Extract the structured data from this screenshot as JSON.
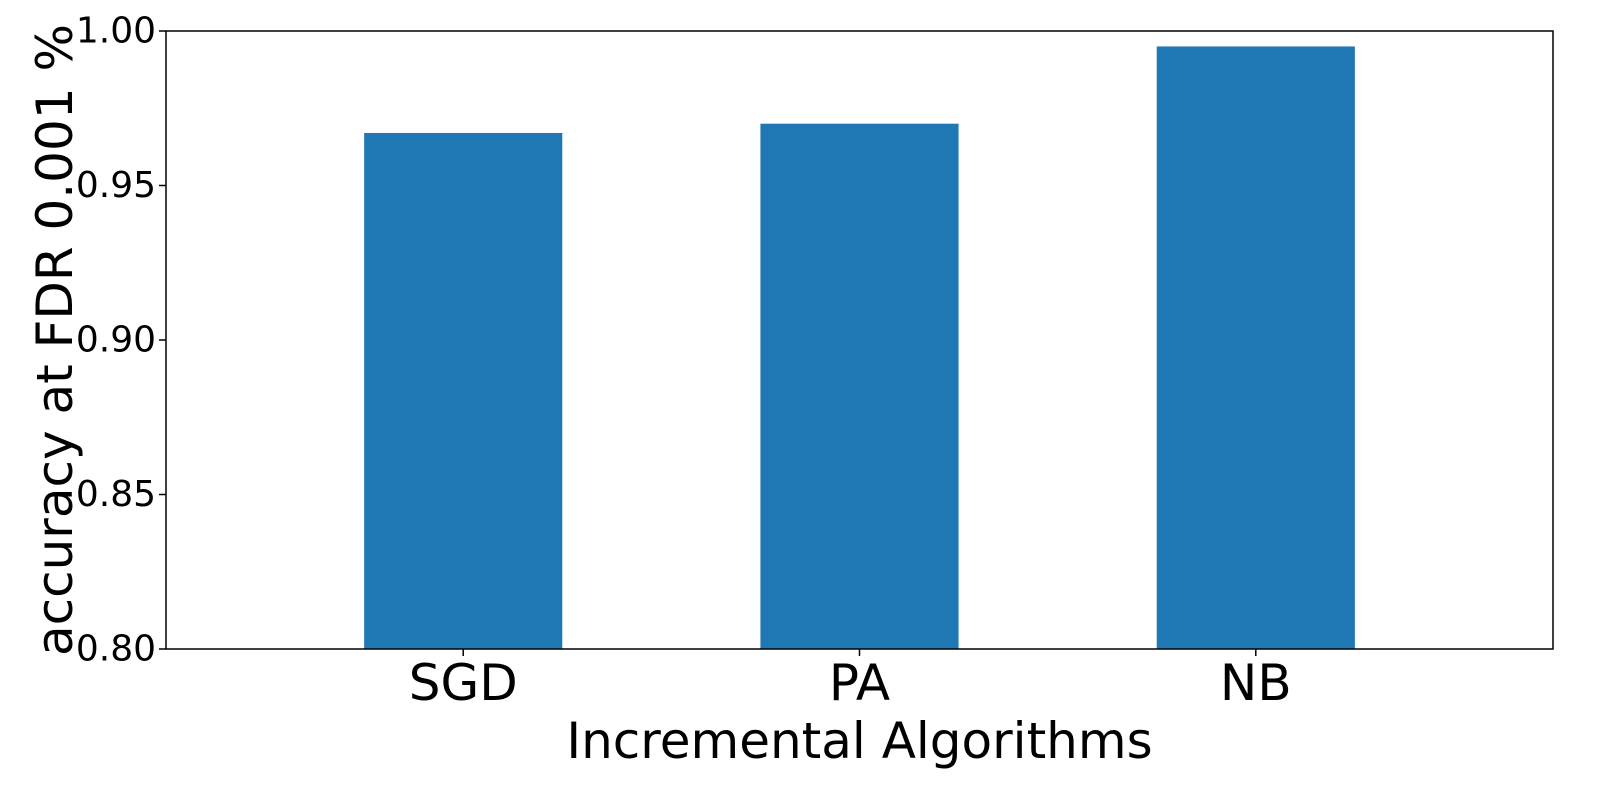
{
  "chart_data": {
    "type": "bar",
    "categories": [
      "SGD",
      "PA",
      "NB"
    ],
    "values": [
      0.967,
      0.97,
      0.995
    ],
    "xlabel": "Incremental Algorithms",
    "ylabel": "accuracy at FDR 0.001 %",
    "ylim": [
      0.8,
      1.0
    ],
    "yticks": [
      "0.80",
      "0.85",
      "0.90",
      "0.95",
      "1.00"
    ],
    "grid": false,
    "legend": "none",
    "colors": {
      "bar": "#1f77b4",
      "axes": "#000000",
      "background": "#ffffff"
    }
  }
}
